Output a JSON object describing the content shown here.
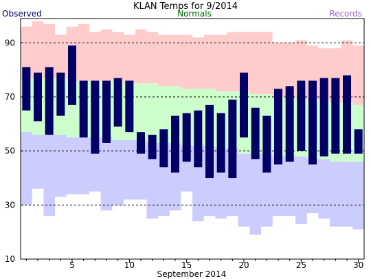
{
  "chart_data": {
    "type": "bar",
    "title": "KLAN Temps for 9/2014",
    "xlabel": "September 2014",
    "ylabel": "",
    "legend": [
      {
        "name": "Observed",
        "color": "#000066"
      },
      {
        "name": "Normals",
        "color": "#006600"
      },
      {
        "name": "Records",
        "color": "#9966cc"
      }
    ],
    "ylim": [
      10,
      99
    ],
    "xlim": [
      0.5,
      30.5
    ],
    "y_ticks": [
      10,
      30,
      50,
      70,
      90
    ],
    "x_ticks": [
      5,
      10,
      15,
      20,
      25,
      30
    ],
    "grid_y": [
      30,
      50,
      70,
      90
    ],
    "days": [
      1,
      2,
      3,
      4,
      5,
      6,
      7,
      8,
      9,
      10,
      11,
      12,
      13,
      14,
      15,
      16,
      17,
      18,
      19,
      20,
      21,
      22,
      23,
      24,
      25,
      26,
      27,
      28,
      29,
      30
    ],
    "record_high": [
      96,
      98,
      97,
      93,
      96,
      97,
      94,
      95,
      94,
      93,
      95,
      94,
      93,
      93,
      93,
      92,
      93,
      93,
      94,
      94,
      94,
      94,
      90,
      90,
      91,
      89,
      88,
      88,
      91,
      89
    ],
    "normal_high": [
      77,
      77,
      77,
      77,
      76,
      76,
      76,
      76,
      76,
      75,
      75,
      75,
      74,
      74,
      73,
      73,
      73,
      72,
      72,
      72,
      71,
      71,
      70,
      70,
      69,
      69,
      69,
      68,
      68,
      67
    ],
    "normal_low": [
      57,
      56,
      56,
      56,
      55,
      55,
      55,
      55,
      54,
      54,
      54,
      53,
      53,
      53,
      52,
      52,
      52,
      51,
      51,
      49,
      49,
      49,
      48,
      48,
      48,
      47,
      47,
      46,
      46,
      46
    ],
    "record_low": [
      30,
      36,
      26,
      33,
      34,
      34,
      35,
      28,
      30,
      32,
      32,
      25,
      26,
      28,
      35,
      24,
      26,
      25,
      26,
      22,
      19,
      22,
      26,
      26,
      23,
      27,
      25,
      22,
      22,
      21
    ],
    "observed_high": [
      81,
      79,
      81,
      79,
      89,
      76,
      76,
      76,
      77,
      76,
      57,
      56,
      58,
      63,
      64,
      65,
      67,
      64,
      69,
      79,
      66,
      63,
      73,
      74,
      76,
      76,
      77,
      77,
      78,
      58
    ],
    "observed_low": [
      65,
      61,
      56,
      63,
      67,
      55,
      49,
      53,
      59,
      57,
      49,
      47,
      44,
      42,
      46,
      44,
      40,
      42,
      40,
      55,
      47,
      42,
      45,
      46,
      50,
      45,
      48,
      49,
      49,
      49
    ]
  },
  "colors": {
    "record_band": "#ffcccc",
    "normal_band": "#ccffcc",
    "record_low_band": "#ccccff",
    "observed_bar": "#000066",
    "grid": "#000000"
  }
}
